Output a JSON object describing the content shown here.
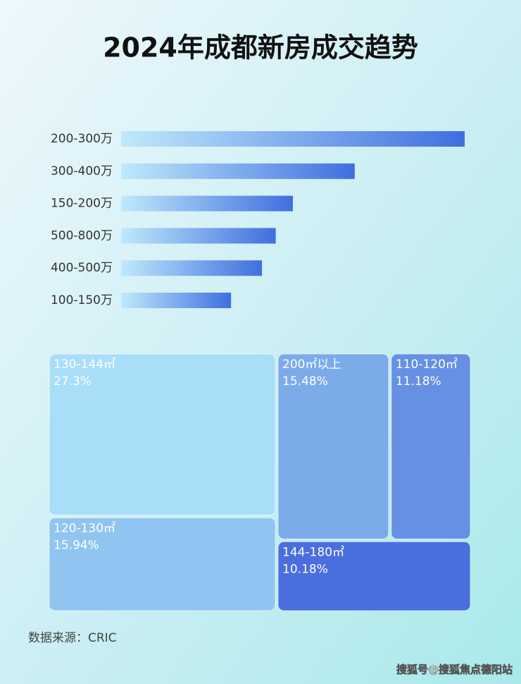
{
  "title": "2024年成都新房成交趋势",
  "chart_data": [
    {
      "type": "bar",
      "categories": [
        "200-300万",
        "300-400万",
        "150-200万",
        "500-800万",
        "400-500万",
        "100-150万"
      ],
      "values": [
        100,
        68,
        50,
        45,
        41,
        32
      ],
      "xlim": [
        0,
        100
      ],
      "color": "#3f6fdf"
    },
    {
      "type": "treemap",
      "categories": [
        "130-144㎡",
        "120-130㎡",
        "200㎡以上",
        "110-120㎡",
        "144-180㎡"
      ],
      "values": [
        27.3,
        15.94,
        15.48,
        11.18,
        10.18
      ],
      "value_labels": [
        "27.3%",
        "15.94%",
        "15.48%",
        "11.18%",
        "10.18%"
      ],
      "colors": [
        "#a9def8",
        "#90c5f1",
        "#7cabea",
        "#6590e3",
        "#4a6edd"
      ]
    }
  ],
  "source": "数据来源：CRIC",
  "watermark": "搜狐号@搜狐焦点德阳站"
}
